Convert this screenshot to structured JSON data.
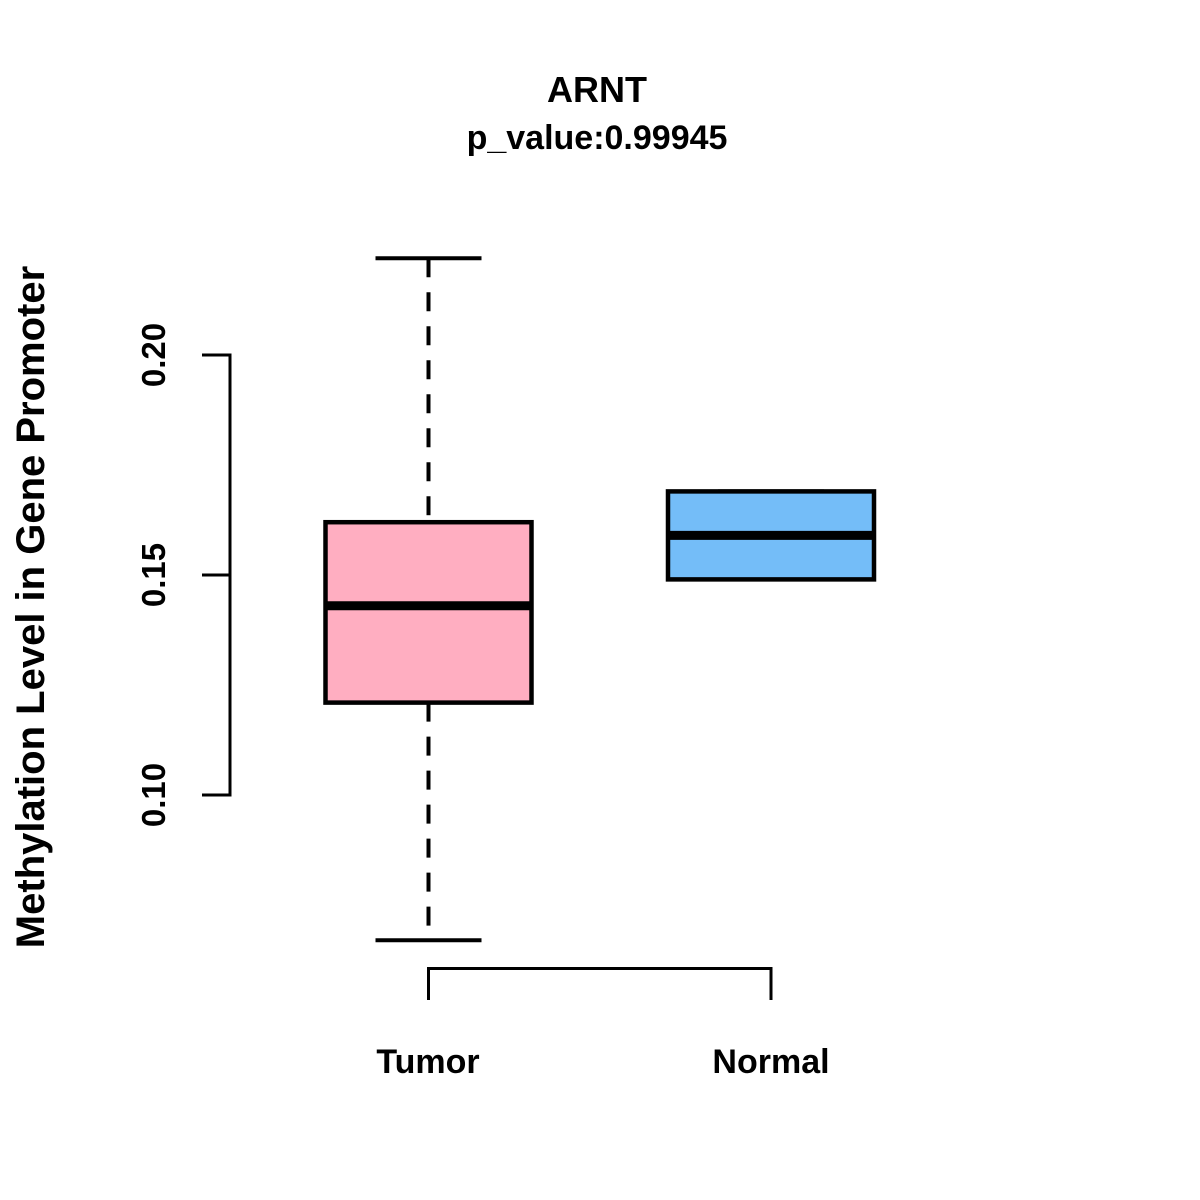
{
  "chart_data": {
    "type": "boxplot",
    "title": "ARNT",
    "subtitle": "p_value:0.99945",
    "p_value": 0.99945,
    "ylabel": "Methylation Level in Gene Promoter",
    "xlabel": "",
    "categories": [
      "Tumor",
      "Normal"
    ],
    "y_ticks": [
      "0.10",
      "0.15",
      "0.20"
    ],
    "y_tick_values": [
      0.1,
      0.15,
      0.2
    ],
    "ylim": [
      0.05,
      0.23
    ],
    "grid": false,
    "legend": "none",
    "background_color": "#ffffff",
    "axis_color": "#000000",
    "box_border_color": "#000000",
    "median_color": "#000000",
    "series": [
      {
        "name": "Tumor",
        "color": "#ffaec1",
        "stats": {
          "whisker_low": 0.067,
          "q1": 0.121,
          "median": 0.143,
          "q3": 0.162,
          "whisker_high": 0.222
        }
      },
      {
        "name": "Normal",
        "color": "#74bdf8",
        "stats": {
          "whisker_low": 0.149,
          "q1": 0.149,
          "median": 0.159,
          "q3": 0.169,
          "whisker_high": 0.169
        }
      }
    ]
  }
}
